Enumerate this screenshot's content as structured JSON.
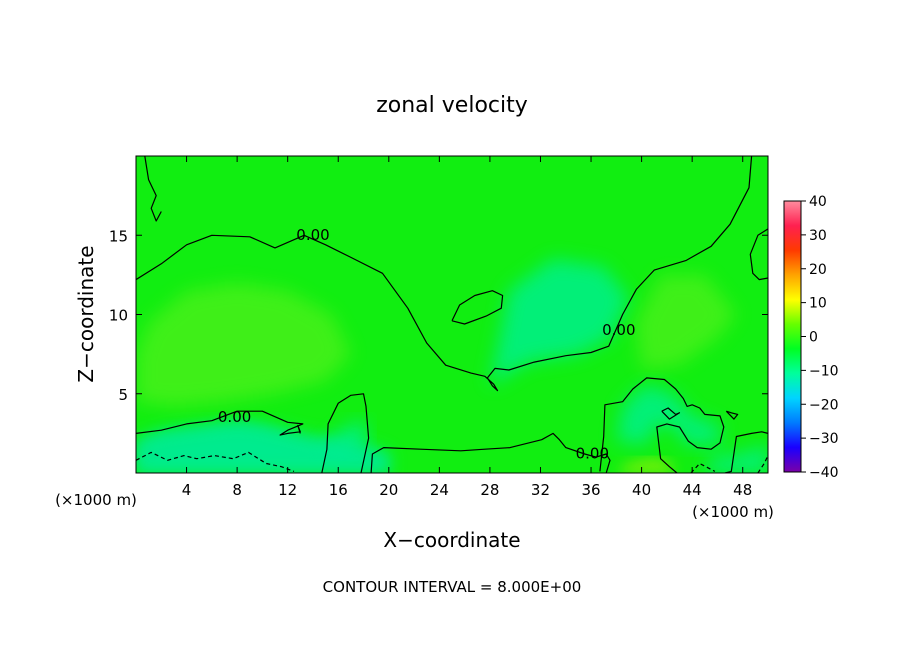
{
  "chart_data": {
    "type": "contour",
    "title": "zonal velocity",
    "xlabel": "X−coordinate",
    "ylabel": "Z−coordinate",
    "x_unit_left": "(×1000 m)",
    "x_unit_right": "(×1000 m)",
    "footer": "CONTOUR INTERVAL = 8.000E+00",
    "xlim": [
      0,
      50
    ],
    "ylim": [
      0,
      20
    ],
    "x_ticks": [
      4,
      8,
      12,
      16,
      20,
      24,
      28,
      32,
      36,
      40,
      44,
      48
    ],
    "y_ticks": [
      5,
      10,
      15
    ],
    "colorbar": {
      "range": [
        -40,
        40
      ],
      "ticks": [
        "40",
        "30",
        "20",
        "10",
        "0",
        "−10",
        "−20",
        "−30",
        "−40"
      ],
      "colors": [
        "#7a00a8",
        "#1a00ff",
        "#007bff",
        "#00d4ff",
        "#00ff9c",
        "#00ff22",
        "#66ff00",
        "#ffff00",
        "#ffa300",
        "#ff3a00",
        "#ff2050",
        "#ff8c9e"
      ]
    },
    "contour_labels": [
      {
        "text": "0.00",
        "x": 14.0,
        "z": 15.0
      },
      {
        "text": "0.00",
        "x": 7.8,
        "z": 3.5
      },
      {
        "text": "0.00",
        "x": 38.2,
        "z": 9.0
      },
      {
        "text": "0.00",
        "x": 36.1,
        "z": 1.2
      }
    ],
    "contours": [
      {
        "style": "solid",
        "points": [
          [
            0,
            12.2
          ],
          [
            2,
            13.2
          ],
          [
            4,
            14.4
          ],
          [
            6,
            15.0
          ],
          [
            9,
            14.9
          ],
          [
            11,
            14.2
          ],
          [
            13.3,
            15.0
          ],
          [
            15,
            14.4
          ],
          [
            17,
            13.6
          ],
          [
            19.5,
            12.6
          ],
          [
            21.5,
            10.4
          ],
          [
            23,
            8.2
          ],
          [
            24.5,
            6.8
          ],
          [
            26.5,
            6.3
          ],
          [
            27.6,
            6.1
          ],
          [
            28.3,
            5.6
          ],
          [
            28.6,
            5.2
          ],
          [
            28.2,
            5.5
          ],
          [
            27.8,
            6.0
          ],
          [
            28.4,
            6.6
          ],
          [
            29.5,
            6.5
          ],
          [
            31.5,
            7.0
          ],
          [
            34,
            7.4
          ],
          [
            36,
            7.6
          ],
          [
            37.4,
            8.0
          ],
          [
            38.5,
            10.0
          ],
          [
            39.6,
            11.6
          ],
          [
            41,
            12.8
          ],
          [
            43.5,
            13.4
          ],
          [
            45.5,
            14.3
          ],
          [
            47,
            15.7
          ],
          [
            48.5,
            18
          ],
          [
            48.7,
            20
          ]
        ]
      },
      {
        "style": "solid",
        "points": [
          [
            0.7,
            20
          ],
          [
            1.0,
            18.5
          ],
          [
            1.6,
            17.5
          ],
          [
            1.2,
            16.7
          ],
          [
            1.6,
            15.9
          ],
          [
            2.0,
            16.5
          ]
        ]
      },
      {
        "style": "solid",
        "points": [
          [
            0,
            2.5
          ],
          [
            2,
            2.7
          ],
          [
            4,
            3.1
          ],
          [
            6,
            3.3
          ],
          [
            8,
            3.9
          ],
          [
            10,
            3.9
          ],
          [
            12,
            3.2
          ],
          [
            13.2,
            3.1
          ],
          [
            12.0,
            2.7
          ],
          [
            11.4,
            2.4
          ],
          [
            12.0,
            2.5
          ],
          [
            13.0,
            2.6
          ],
          [
            12.8,
            3.0
          ],
          [
            13.0,
            2.5
          ]
        ]
      },
      {
        "style": "solid",
        "points": [
          [
            14.7,
            0
          ],
          [
            15.1,
            1.5
          ],
          [
            15.2,
            3.1
          ],
          [
            16.0,
            4.4
          ],
          [
            17,
            4.9
          ],
          [
            18.0,
            5.0
          ],
          [
            18.2,
            4.2
          ],
          [
            18.4,
            2.2
          ],
          [
            17.8,
            0
          ]
        ]
      },
      {
        "style": "solid",
        "points": [
          [
            18.6,
            0
          ],
          [
            18.7,
            1.2
          ],
          [
            19.6,
            1.6
          ],
          [
            22.5,
            1.5
          ],
          [
            25.7,
            1.4
          ],
          [
            27.6,
            1.5
          ],
          [
            29.6,
            1.6
          ],
          [
            32.1,
            2.1
          ],
          [
            33.0,
            2.5
          ],
          [
            33.5,
            2.1
          ],
          [
            34,
            1.6
          ],
          [
            35.5,
            1.2
          ],
          [
            36.4,
            1.0
          ],
          [
            37.2,
            1.2
          ],
          [
            37.5,
            0.8
          ],
          [
            37.2,
            0
          ]
        ]
      },
      {
        "style": "solid",
        "points": [
          [
            25.0,
            9.6
          ],
          [
            25.6,
            10.6
          ],
          [
            26.8,
            11.2
          ],
          [
            28.2,
            11.5
          ],
          [
            29.0,
            11.2
          ],
          [
            28.9,
            10.4
          ],
          [
            27.7,
            9.9
          ],
          [
            26.0,
            9.4
          ],
          [
            25.0,
            9.6
          ]
        ]
      },
      {
        "style": "solid",
        "points": [
          [
            36.7,
            0.1
          ],
          [
            37.0,
            2.3
          ],
          [
            37.1,
            4.3
          ],
          [
            38.5,
            4.5
          ],
          [
            39.3,
            5.3
          ],
          [
            40.4,
            6.0
          ],
          [
            41.8,
            5.9
          ],
          [
            42.7,
            5.3
          ],
          [
            43.3,
            4.7
          ],
          [
            43.6,
            4.2
          ],
          [
            44.0,
            4.3
          ],
          [
            44.6,
            4.1
          ],
          [
            45.0,
            3.7
          ],
          [
            46.2,
            3.6
          ],
          [
            46.5,
            2.9
          ],
          [
            46.2,
            1.9
          ],
          [
            45.5,
            1.5
          ],
          [
            44.4,
            1.6
          ],
          [
            43.7,
            2.0
          ],
          [
            43.0,
            2.9
          ],
          [
            42.0,
            3.1
          ],
          [
            41.2,
            2.9
          ],
          [
            41.5,
            0.9
          ],
          [
            42.2,
            0.4
          ],
          [
            42.8,
            0
          ]
        ]
      },
      {
        "style": "solid",
        "points": [
          [
            41.6,
            3.9
          ],
          [
            42.1,
            4.1
          ],
          [
            42.7,
            3.7
          ],
          [
            43.0,
            3.8
          ],
          [
            42.2,
            3.4
          ],
          [
            41.6,
            3.9
          ]
        ]
      },
      {
        "style": "solid",
        "points": [
          [
            46.7,
            3.9
          ],
          [
            47.1,
            3.8
          ],
          [
            47.6,
            3.7
          ],
          [
            47.3,
            3.4
          ],
          [
            46.7,
            3.9
          ]
        ]
      },
      {
        "style": "solid",
        "points": [
          [
            46.6,
            0
          ],
          [
            47.1,
            0.1
          ],
          [
            47.5,
            2.3
          ],
          [
            48.7,
            2.5
          ],
          [
            49.5,
            2.6
          ],
          [
            50,
            2.5
          ]
        ]
      },
      {
        "style": "solid",
        "points": [
          [
            50,
            15.4
          ],
          [
            49.2,
            15.0
          ],
          [
            48.6,
            13.8
          ],
          [
            48.8,
            12.6
          ],
          [
            49.3,
            12.2
          ],
          [
            50,
            12.3
          ]
        ]
      },
      {
        "style": "dashed",
        "points": [
          [
            0,
            0.8
          ],
          [
            1.2,
            1.3
          ],
          [
            2.5,
            0.8
          ],
          [
            3.8,
            1.1
          ],
          [
            4.8,
            0.9
          ],
          [
            6.2,
            1.1
          ],
          [
            7.7,
            0.9
          ],
          [
            8.9,
            1.3
          ],
          [
            10.3,
            0.6
          ],
          [
            11.5,
            0.4
          ],
          [
            12.5,
            0.1
          ]
        ]
      },
      {
        "style": "dashed",
        "points": [
          [
            43.9,
            0
          ],
          [
            44.6,
            0.6
          ],
          [
            45.8,
            0.1
          ]
        ]
      },
      {
        "style": "dashed",
        "points": [
          [
            49.2,
            0
          ],
          [
            49.7,
            0.6
          ],
          [
            50,
            1.1
          ]
        ]
      }
    ],
    "cold_zones": [
      {
        "points": [
          [
            0,
            0
          ],
          [
            0,
            2.0
          ],
          [
            2,
            2.6
          ],
          [
            4,
            2.8
          ],
          [
            6,
            3.0
          ],
          [
            8,
            3.2
          ],
          [
            10,
            3.0
          ],
          [
            12,
            2.6
          ],
          [
            14,
            2.2
          ],
          [
            16,
            2.0
          ],
          [
            18,
            1.6
          ],
          [
            20,
            1.2
          ],
          [
            20,
            0
          ]
        ]
      },
      {
        "points": [
          [
            14.5,
            1.2
          ],
          [
            16,
            2.6
          ],
          [
            18,
            3.4
          ],
          [
            18.3,
            2.4
          ],
          [
            18,
            1.2
          ]
        ]
      },
      {
        "points": [
          [
            38,
            2
          ],
          [
            38.5,
            4.2
          ],
          [
            40.3,
            5.6
          ],
          [
            42.5,
            5.0
          ],
          [
            44,
            3.6
          ],
          [
            46.2,
            3.0
          ],
          [
            46.2,
            1.8
          ],
          [
            43.5,
            1.8
          ],
          [
            42.5,
            3.0
          ],
          [
            41,
            3.0
          ],
          [
            40.5,
            1.8
          ]
        ]
      },
      {
        "points": [
          [
            45,
            0
          ],
          [
            45.5,
            1.0
          ],
          [
            48,
            1.2
          ],
          [
            50,
            1.8
          ],
          [
            50,
            0
          ]
        ]
      },
      {
        "points": [
          [
            28,
            5.5
          ],
          [
            31,
            7.0
          ],
          [
            35,
            7.5
          ],
          [
            37.5,
            8.5
          ],
          [
            39,
            11
          ],
          [
            37,
            13
          ],
          [
            33,
            13.5
          ],
          [
            29.5,
            11.5
          ]
        ]
      }
    ],
    "warm_zones": [
      {
        "points": [
          [
            0,
            4.5
          ],
          [
            3,
            4.2
          ],
          [
            7,
            4.5
          ],
          [
            11,
            5.0
          ],
          [
            15,
            5.8
          ],
          [
            17,
            7.5
          ],
          [
            15.5,
            10
          ],
          [
            12,
            11.5
          ],
          [
            8,
            12
          ],
          [
            4,
            11.5
          ],
          [
            1,
            9.5
          ],
          [
            0,
            7.5
          ]
        ]
      },
      {
        "points": [
          [
            38,
            0
          ],
          [
            39,
            0.6
          ],
          [
            41,
            0.9
          ],
          [
            42.3,
            0.6
          ],
          [
            42.5,
            0
          ]
        ]
      },
      {
        "points": [
          [
            40,
            6.5
          ],
          [
            43,
            6.8
          ],
          [
            46,
            8.5
          ],
          [
            47.5,
            10
          ],
          [
            45,
            12.5
          ],
          [
            41.5,
            12.5
          ],
          [
            39.5,
            9.5
          ]
        ]
      }
    ]
  }
}
